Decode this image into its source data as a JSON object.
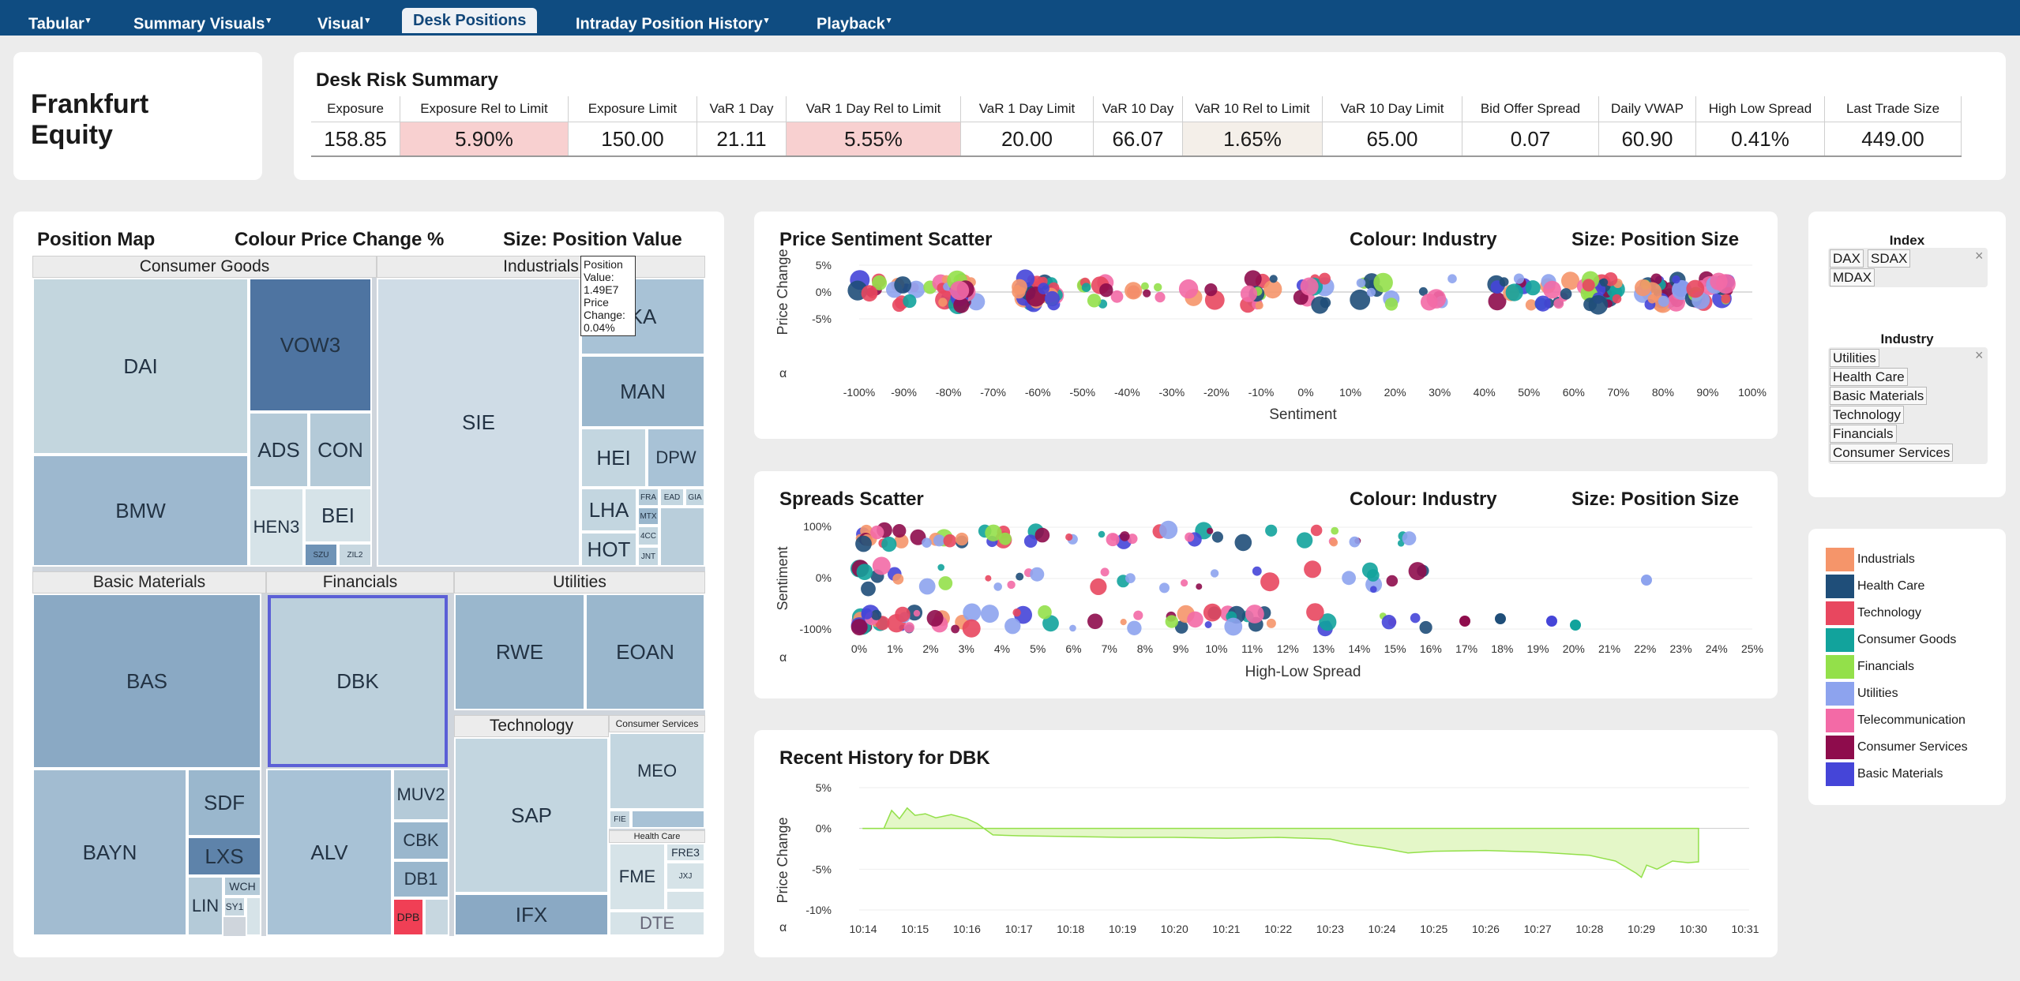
{
  "nav": {
    "tabs": [
      {
        "label": "Tabular",
        "caret": "▾"
      },
      {
        "label": "Summary Visuals",
        "caret": "▾"
      },
      {
        "label": "Visual",
        "caret": "▾"
      },
      {
        "label": "Desk Positions",
        "caret": ""
      },
      {
        "label": "Intraday Position History",
        "caret": "▾"
      },
      {
        "label": "Playback",
        "caret": "▾"
      }
    ]
  },
  "desk": {
    "name_line1": "Frankfurt",
    "name_line2": "Equity"
  },
  "risk": {
    "title": "Desk Risk Summary",
    "headers": [
      "Exposure",
      "Exposure Rel to Limit",
      "Exposure Limit",
      "VaR 1 Day",
      "VaR 1 Day Rel to Limit",
      "VaR 1 Day Limit",
      "VaR 10 Day",
      "VaR 10 Rel to Limit",
      "VaR 10 Day Limit",
      "Bid Offer Spread",
      "Daily VWAP",
      "High Low Spread",
      "Last Trade Size"
    ],
    "values": [
      "158.85",
      "5.90%",
      "150.00",
      "21.11",
      "5.55%",
      "20.00",
      "66.07",
      "1.65%",
      "65.00",
      "0.07",
      "60.90",
      "0.41%",
      "449.00"
    ]
  },
  "position_map": {
    "title": "Position Map",
    "colour": "Colour Price Change %",
    "size": "Size: Position Value",
    "groups": {
      "consumer_goods": "Consumer Goods",
      "industrials": "Industrials",
      "basic_materials": "Basic Materials",
      "financials": "Financials",
      "utilities": "Utilities",
      "technology": "Technology",
      "consumer_services": "Consumer Services",
      "health_care": "Health Care"
    },
    "tiles": {
      "DAI": "DAI",
      "VOW3": "VOW3",
      "BMW": "BMW",
      "ADS": "ADS",
      "CON": "CON",
      "HEN3": "HEN3",
      "BEI": "BEI",
      "SZU": "SZU",
      "ZIL2": "ZIL2",
      "SIE": "SIE",
      "KA": "KA",
      "MAN": "MAN",
      "HEI": "HEI",
      "DPW": "DPW",
      "LHA": "LHA",
      "HOT": "HOT",
      "FRA": "FRA",
      "EAD": "EAD",
      "GIA": "GIA",
      "MTX": "MTX",
      "4CC": "4CC",
      "JNT": "JNT",
      "BAS": "BAS",
      "BAYN": "BAYN",
      "SDF": "SDF",
      "LXS": "LXS",
      "LIN": "LIN",
      "WCH": "WCH",
      "SY1": "SY1",
      "DBK": "DBK",
      "ALV": "ALV",
      "MUV2": "MUV2",
      "CBK": "CBK",
      "DB1": "DB1",
      "DPB": "DPB",
      "RWE": "RWE",
      "EOAN": "EOAN",
      "SAP": "SAP",
      "IFX": "IFX",
      "MEO": "MEO",
      "FIE": "FIE",
      "FME": "FME",
      "FRE3": "FRE3",
      "JXJ": "JXJ",
      "DTE": "DTE"
    },
    "tooltip": {
      "l1": "Position",
      "l2": "Value:",
      "l3": "1.49E7",
      "l4": "Price",
      "l5": "Change:",
      "l6": "0.04%"
    }
  },
  "price_scatter": {
    "title": "Price Sentiment Scatter",
    "colour": "Colour: Industry",
    "size": "Size: Position Size",
    "xlabel": "Sentiment",
    "ylabel": "Price Change",
    "corner": "α",
    "xticks": [
      "-100%",
      "-90%",
      "-80%",
      "-70%",
      "-60%",
      "-50%",
      "-40%",
      "-30%",
      "-20%",
      "-10%",
      "0%",
      "10%",
      "20%",
      "30%",
      "40%",
      "50%",
      "60%",
      "70%",
      "80%",
      "90%",
      "100%"
    ],
    "yticks": [
      "5%",
      "0%",
      "-5%"
    ]
  },
  "spread_scatter": {
    "title": "Spreads Scatter",
    "colour": "Colour: Industry",
    "size": "Size: Position Size",
    "xlabel": "High-Low Spread",
    "ylabel": "Sentiment",
    "corner": "α",
    "xticks": [
      "0%",
      "1%",
      "2%",
      "3%",
      "4%",
      "5%",
      "6%",
      "7%",
      "8%",
      "9%",
      "10%",
      "11%",
      "12%",
      "13%",
      "14%",
      "15%",
      "16%",
      "17%",
      "18%",
      "19%",
      "20%",
      "21%",
      "22%",
      "23%",
      "24%",
      "25%"
    ],
    "yticks": [
      "100%",
      "0%",
      "-100%"
    ]
  },
  "history": {
    "title": "Recent History for DBK",
    "ylabel": "Price Change",
    "corner": "α",
    "xticks": [
      "10:14",
      "10:15",
      "10:16",
      "10:17",
      "10:18",
      "10:19",
      "10:20",
      "10:21",
      "10:22",
      "10:23",
      "10:24",
      "10:25",
      "10:26",
      "10:27",
      "10:28",
      "10:29",
      "10:30",
      "10:31"
    ],
    "yticks": [
      "5%",
      "0%",
      "-5%",
      "-10%"
    ],
    "series": [
      [
        0,
        0
      ],
      [
        0.4,
        0
      ],
      [
        0.55,
        2.2
      ],
      [
        0.7,
        1.2
      ],
      [
        0.85,
        2.5
      ],
      [
        1.0,
        1.6
      ],
      [
        1.2,
        1.8
      ],
      [
        1.4,
        1.3
      ],
      [
        1.7,
        1.7
      ],
      [
        2.0,
        1.2
      ],
      [
        2.2,
        0.6
      ],
      [
        2.5,
        -0.8
      ],
      [
        3.0,
        -0.9
      ],
      [
        4.0,
        -1.0
      ],
      [
        5.0,
        -1.1
      ],
      [
        6.0,
        -1.1
      ],
      [
        7.0,
        -1.2
      ],
      [
        8.0,
        -1.1
      ],
      [
        9.0,
        -1.3
      ],
      [
        9.5,
        -2.0
      ],
      [
        10.0,
        -2.4
      ],
      [
        10.5,
        -3.0
      ],
      [
        11.0,
        -2.8
      ],
      [
        12.0,
        -2.7
      ],
      [
        13.0,
        -2.9
      ],
      [
        14.0,
        -3.3
      ],
      [
        14.5,
        -4.0
      ],
      [
        14.9,
        -5.5
      ],
      [
        15.0,
        -6.0
      ],
      [
        15.1,
        -4.5
      ],
      [
        15.3,
        -5.0
      ],
      [
        15.6,
        -4.0
      ],
      [
        15.9,
        -4.2
      ],
      [
        16.1,
        -4.1
      ]
    ]
  },
  "filters": {
    "index_title": "Index",
    "index_chips": [
      "DAX",
      "SDAX",
      "MDAX"
    ],
    "industry_title": "Industry",
    "industry_chips": [
      "Utilities",
      "Health Care",
      "Basic Materials",
      "Technology",
      "Financials",
      "Consumer Services"
    ],
    "close": "×"
  },
  "legend": {
    "items": [
      {
        "label": "Industrials",
        "color": "#f5956a"
      },
      {
        "label": "Health Care",
        "color": "#1f4e79"
      },
      {
        "label": "Technology",
        "color": "#e8475f"
      },
      {
        "label": "Consumer Goods",
        "color": "#12a39c"
      },
      {
        "label": "Financials",
        "color": "#93e04a"
      },
      {
        "label": "Utilities",
        "color": "#8da3ee"
      },
      {
        "label": "Telecommunication",
        "color": "#f36aa6"
      },
      {
        "label": "Consumer Services",
        "color": "#8e0c4c"
      },
      {
        "label": "Basic Materials",
        "color": "#4545d8"
      }
    ]
  }
}
